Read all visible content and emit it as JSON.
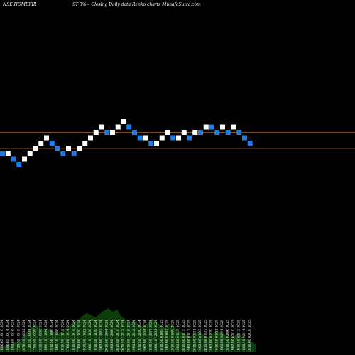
{
  "header": {
    "left": "NSE HOMEFIR",
    "right": "ST 3%~  Closing Daily data  Renko  charts MunafaSutra.com"
  },
  "chart_data": {
    "type": "renko",
    "title": "NSE HOMEFIRST 3% Closing Daily data Renko charts",
    "brick_open_close": [
      [
        1.0,
        0.0
      ],
      [
        0.0,
        1.0
      ],
      [
        0.0,
        -1.0
      ],
      [
        -1.0,
        -2.0
      ],
      [
        -1.0,
        0.0
      ],
      [
        0.0,
        1.0
      ],
      [
        1.0,
        2.0
      ],
      [
        2.0,
        3.0
      ],
      [
        3.0,
        4.0
      ],
      [
        3.0,
        2.0
      ],
      [
        2.0,
        1.0
      ],
      [
        1.0,
        0.0
      ],
      [
        1.0,
        2.0
      ],
      [
        1.0,
        0.0
      ],
      [
        1.0,
        2.0
      ],
      [
        2.0,
        3.0
      ],
      [
        3.0,
        4.0
      ],
      [
        4.0,
        5.0
      ],
      [
        5.0,
        6.0
      ],
      [
        5.0,
        4.0
      ],
      [
        4.0,
        5.0
      ],
      [
        5.0,
        6.0
      ],
      [
        6.0,
        7.0
      ],
      [
        6.0,
        5.0
      ],
      [
        5.0,
        4.0
      ],
      [
        4.0,
        3.0
      ],
      [
        3.0,
        4.0
      ],
      [
        3.0,
        2.0
      ],
      [
        2.0,
        3.0
      ],
      [
        3.0,
        4.0
      ],
      [
        4.0,
        5.0
      ],
      [
        4.0,
        3.0
      ],
      [
        3.0,
        4.0
      ],
      [
        4.0,
        5.0
      ],
      [
        4.0,
        3.0
      ],
      [
        4.0,
        5.0
      ],
      [
        5.0,
        4.0
      ],
      [
        5.0,
        6.0
      ],
      [
        6.0,
        5.0
      ],
      [
        5.0,
        4.0
      ],
      [
        5.0,
        6.0
      ],
      [
        5.0,
        4.0
      ],
      [
        5.0,
        6.0
      ],
      [
        5.0,
        4.0
      ],
      [
        4.0,
        3.0
      ],
      [
        3.0,
        2.0
      ]
    ],
    "level_lines": [
      4.5,
      1.5
    ],
    "colors": {
      "up": "#ffffff",
      "down": "#1e7ce6",
      "level_line": "#b8651b",
      "volume": "#0b3d0b",
      "background": "#000000"
    },
    "volume": [
      4,
      5,
      6,
      8,
      9,
      12,
      17,
      20,
      24,
      22,
      19,
      21,
      18,
      16,
      17,
      20,
      23,
      26,
      28,
      31,
      34,
      32,
      30,
      33,
      36,
      38,
      35,
      37,
      31,
      28,
      25,
      27,
      24,
      22,
      25,
      29,
      26,
      23,
      21,
      24,
      22,
      19,
      17,
      15,
      14,
      16,
      18,
      15,
      13,
      16,
      19,
      17,
      15,
      12,
      14,
      16,
      13,
      11,
      9,
      7
    ],
    "x_tick_labels": [
      "1806.65 10/10 2024",
      "1806.65 10/14 2024",
      "1802.80 10/16 2024",
      "1720.35 10/18 2024",
      "1676.40 10/22 2024",
      "1720.35 10/24 2024",
      "1759.95 10/28 2024",
      "1810.90 10/30 2024",
      "1860.10 11/04 2024",
      "1910.50 11/06 2024",
      "1860.10 11/08 2024",
      "1810.90 11/12 2024",
      "1760.80 11/14 2024",
      "1810.90 11/18 2024",
      "1760.80 11/20 2024",
      "1810.90 11/22 2024",
      "1860.10 11/26 2024",
      "1910.50 11/28 2024",
      "1962.80 12/02 2024",
      "2015.90 12/04 2024",
      "1962.80 12/06 2024",
      "2015.90 12/10 2024",
      "2070.55 12/12 2024",
      "2015.90 12/16 2024",
      "1962.80 12/18 2024",
      "1910.50 12/20 2024",
      "1962.80 12/24 2024",
      "1910.50 12/27 2024",
      "1860.10 12/31 2024",
      "1910.50 01/03 2025",
      "1962.80 01/07 2025",
      "1910.50 01/09 2025",
      "1962.80 01/13 2025",
      "2015.90 01/15 2025",
      "1962.80 01/17 2025",
      "2015.90 01/21 2025",
      "1962.80 01/23 2025",
      "2015.90 01/27 2025",
      "1962.80 01/29 2025",
      "1910.50 01/31 2025",
      "1962.80 02/04 2025",
      "1910.50 02/06 2025",
      "1962.80 02/10 2025",
      "1910.50 02/12 2025",
      "1860.10 02/14 2025",
      "1810.90 02/18 2025"
    ]
  }
}
